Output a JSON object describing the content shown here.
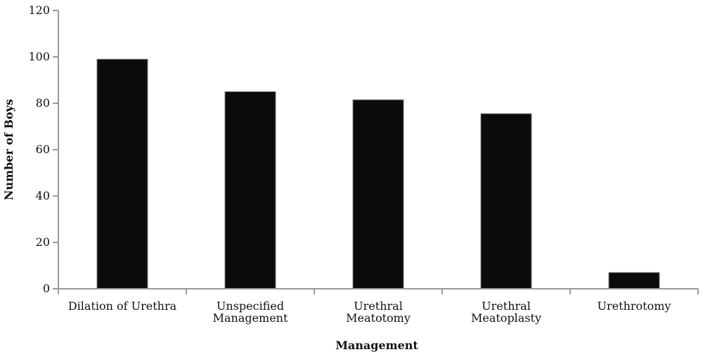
{
  "chart_data": {
    "type": "bar",
    "categories": [
      "Dilation of Urethra",
      "Unspecified Management",
      "Urethral Meatotomy",
      "Urethral Meatoplasty",
      "Urethrotomy"
    ],
    "category_lines": [
      [
        "Dilation of Urethra"
      ],
      [
        "Unspecified",
        "Management"
      ],
      [
        "Urethral",
        "Meatotomy"
      ],
      [
        "Urethral",
        "Meatoplasty"
      ],
      [
        "Urethrotomy"
      ]
    ],
    "values": [
      99,
      85,
      81.5,
      75.5,
      7
    ],
    "title": "",
    "xlabel": "Management",
    "ylabel": "Number of Boys",
    "ylim": [
      0,
      120
    ],
    "yticks": [
      0,
      20,
      40,
      60,
      80,
      100,
      120
    ],
    "grid": false,
    "bar_color": "#0b0b0b"
  }
}
